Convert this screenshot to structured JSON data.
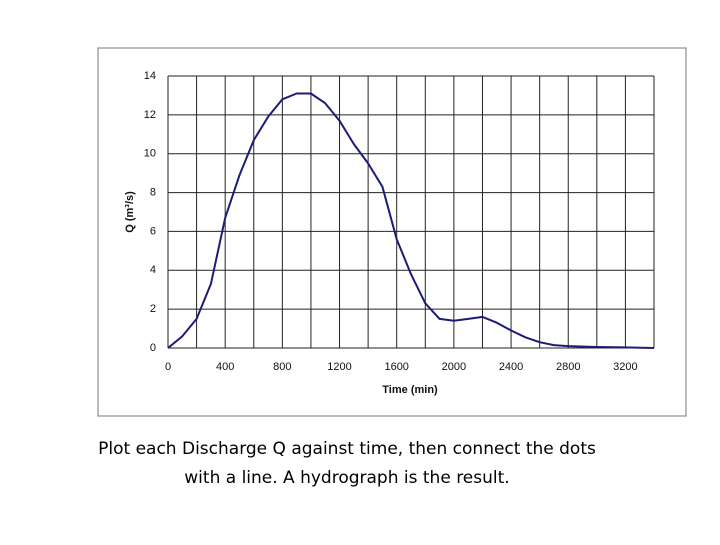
{
  "chart_data": {
    "type": "line",
    "xlabel": "Time (min)",
    "ylabel": "Q (m³/s)",
    "x": [
      0,
      100,
      200,
      300,
      400,
      500,
      600,
      700,
      800,
      900,
      1000,
      1100,
      1200,
      1300,
      1400,
      1500,
      1600,
      1700,
      1800,
      1900,
      2000,
      2100,
      2200,
      2300,
      2400,
      2500,
      2600,
      2700,
      2800,
      3000,
      3200,
      3400
    ],
    "values": [
      0,
      0.6,
      1.5,
      3.3,
      6.7,
      8.9,
      10.7,
      11.9,
      12.8,
      13.1,
      13.1,
      12.6,
      11.7,
      10.5,
      9.5,
      8.3,
      5.6,
      3.8,
      2.3,
      1.5,
      1.4,
      1.5,
      1.6,
      1.3,
      0.9,
      0.55,
      0.3,
      0.15,
      0.1,
      0.05,
      0.03,
      0
    ],
    "color": "#1c1c78",
    "xlim": [
      0,
      3400
    ],
    "ylim": [
      0,
      14
    ],
    "xticks": [
      0,
      400,
      800,
      1200,
      1600,
      2000,
      2400,
      2800,
      3200
    ],
    "xgrid": [
      200,
      600,
      1000,
      1400,
      1800,
      2200,
      2600,
      3000,
      3400
    ],
    "yticks": [
      0,
      2,
      4,
      6,
      8,
      10,
      12,
      14
    ],
    "grid": true
  },
  "caption": [
    "Plot each Discharge Q against time, then connect the dots",
    "with a line. A hydrograph is the result."
  ]
}
